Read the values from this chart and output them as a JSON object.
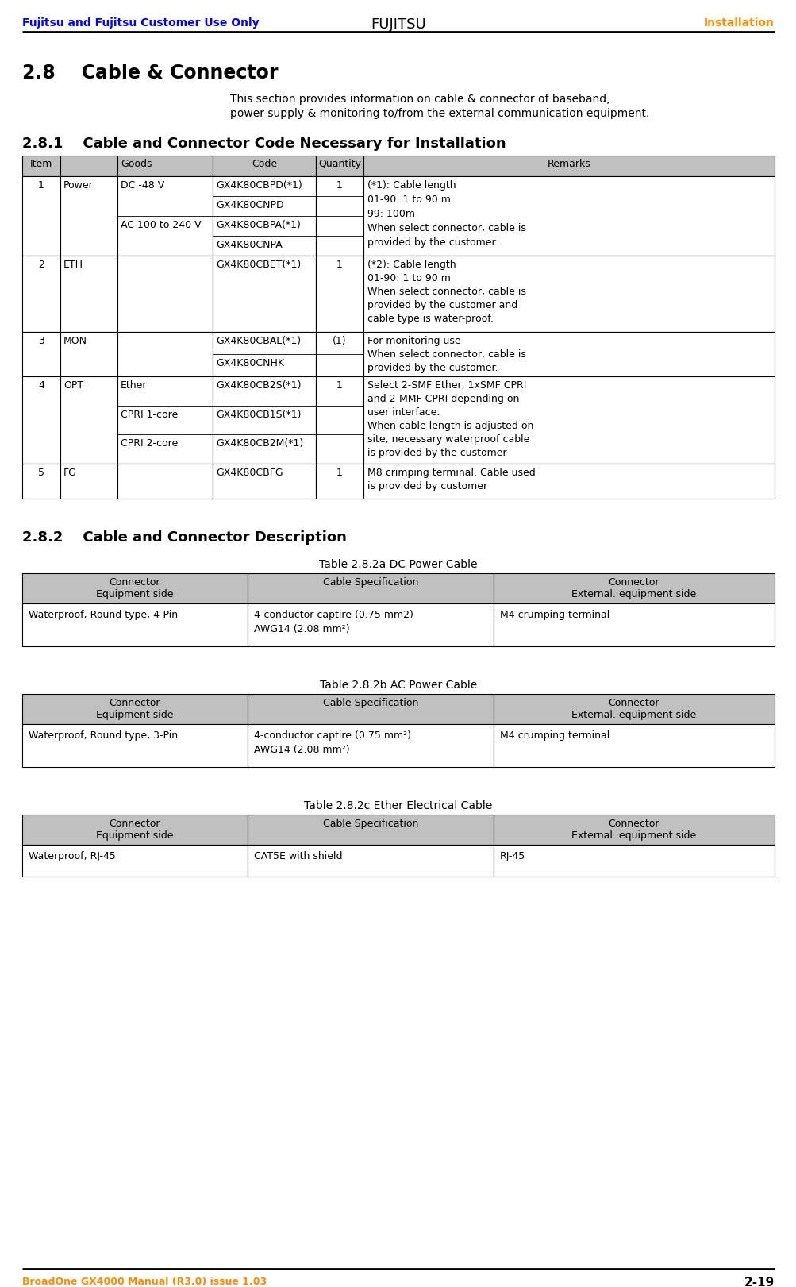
{
  "header_left": "Fujitsu and Fujitsu Customer Use Only",
  "header_right": "Installation",
  "header_color": "#0000EE",
  "header_right_color": "#FF8C00",
  "footer_left": "BroadOne GX4000 Manual (R3.0) issue 1.03",
  "footer_right": "2-19",
  "footer_color": "#FF8C00",
  "section_title": "2.8    Cable & Connector",
  "section_desc_line1": "This section provides information on cable & connector of baseband,",
  "section_desc_line2": "power supply & monitoring to/from the external communication equipment.",
  "subsection1_title": "2.8.1    Cable and Connector Code Necessary for Installation",
  "subsection2_title": "2.8.2    Cable and Connector Description",
  "table1_headers": [
    "Item",
    "Goods",
    "Code",
    "Quantity",
    "Remarks"
  ],
  "table2a_title": "Table 2.8.2a DC Power Cable",
  "table2b_title": "Table 2.8.2b AC Power Cable",
  "table2c_title": "Table 2.8.2c Ether Electrical Cable",
  "table2_headers": [
    "Connector\nEquipment side",
    "Cable Specification",
    "Connector\nExternal. equipment side"
  ],
  "table2a_row": [
    "Waterproof, Round type, 4-Pin",
    "4-conductor captire (0.75 mm2)\nAWG14 (2.08 mm²)",
    "M4 crumping terminal"
  ],
  "table2b_row": [
    "Waterproof, Round type, 3-Pin",
    "4-conductor captire (0.75 mm²)\nAWG14 (2.08 mm²)",
    "M4 crumping terminal"
  ],
  "table2c_row": [
    "Waterproof, RJ-45",
    "CAT5E with shield",
    "RJ-45"
  ],
  "bg_color": "#FFFFFF",
  "table_header_bg": "#C0C0C0",
  "line_color": "#000000",
  "text_color": "#000000"
}
